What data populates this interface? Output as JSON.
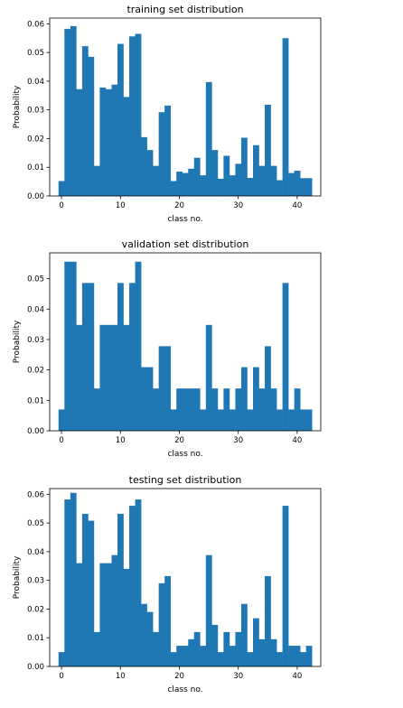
{
  "chart_data": [
    {
      "type": "bar",
      "title": "training set distribution",
      "xlabel": "class no.",
      "ylabel": "Probability",
      "xlim": [
        -2,
        44
      ],
      "ylim": [
        0,
        0.062
      ],
      "xticks": [
        0,
        10,
        20,
        30,
        40
      ],
      "yticks": [
        "0.00",
        "0.01",
        "0.02",
        "0.03",
        "0.04",
        "0.05",
        "0.06"
      ],
      "categories": [
        0,
        1,
        2,
        3,
        4,
        5,
        6,
        7,
        8,
        9,
        10,
        11,
        12,
        13,
        14,
        15,
        16,
        17,
        18,
        19,
        20,
        21,
        22,
        23,
        24,
        25,
        26,
        27,
        28,
        29,
        30,
        31,
        32,
        33,
        34,
        35,
        36,
        37,
        38,
        39,
        40,
        41,
        42
      ],
      "values": [
        0.0052,
        0.0582,
        0.0592,
        0.0372,
        0.0522,
        0.0485,
        0.0105,
        0.0378,
        0.0372,
        0.0388,
        0.053,
        0.0345,
        0.0556,
        0.0565,
        0.0205,
        0.016,
        0.0105,
        0.0292,
        0.0315,
        0.0052,
        0.0085,
        0.008,
        0.0095,
        0.0133,
        0.0072,
        0.0397,
        0.016,
        0.006,
        0.014,
        0.0072,
        0.0112,
        0.0203,
        0.0063,
        0.0177,
        0.0105,
        0.0318,
        0.0105,
        0.0055,
        0.055,
        0.008,
        0.0088,
        0.0062,
        0.0062
      ],
      "grid": false
    },
    {
      "type": "bar",
      "title": "validation set distribution",
      "xlabel": "class no.",
      "ylabel": "Probability",
      "xlim": [
        -2,
        44
      ],
      "ylim": [
        0,
        0.0585
      ],
      "xticks": [
        0,
        10,
        20,
        30,
        40
      ],
      "yticks": [
        "0.00",
        "0.01",
        "0.02",
        "0.03",
        "0.04",
        "0.05"
      ],
      "categories": [
        0,
        1,
        2,
        3,
        4,
        5,
        6,
        7,
        8,
        9,
        10,
        11,
        12,
        13,
        14,
        15,
        16,
        17,
        18,
        19,
        20,
        21,
        22,
        23,
        24,
        25,
        26,
        27,
        28,
        29,
        30,
        31,
        32,
        33,
        34,
        35,
        36,
        37,
        38,
        39,
        40,
        41,
        42
      ],
      "values": [
        0.007,
        0.0556,
        0.0556,
        0.0348,
        0.0486,
        0.0486,
        0.0139,
        0.0348,
        0.0348,
        0.0348,
        0.0486,
        0.0348,
        0.0486,
        0.0556,
        0.0209,
        0.0209,
        0.0139,
        0.0278,
        0.0278,
        0.007,
        0.0139,
        0.0139,
        0.0139,
        0.0139,
        0.007,
        0.0348,
        0.0139,
        0.007,
        0.0139,
        0.007,
        0.0139,
        0.0209,
        0.007,
        0.0209,
        0.0139,
        0.0278,
        0.0139,
        0.007,
        0.0486,
        0.007,
        0.0139,
        0.007,
        0.007
      ],
      "grid": false
    },
    {
      "type": "bar",
      "title": "testing set distribution",
      "xlabel": "class no.",
      "ylabel": "Probability",
      "xlim": [
        -2,
        44
      ],
      "ylim": [
        0,
        0.062
      ],
      "xticks": [
        0,
        10,
        20,
        30,
        40
      ],
      "yticks": [
        "0.00",
        "0.01",
        "0.02",
        "0.03",
        "0.04",
        "0.05",
        "0.06"
      ],
      "categories": [
        0,
        1,
        2,
        3,
        4,
        5,
        6,
        7,
        8,
        9,
        10,
        11,
        12,
        13,
        14,
        15,
        16,
        17,
        18,
        19,
        20,
        21,
        22,
        23,
        24,
        25,
        26,
        27,
        28,
        29,
        30,
        31,
        32,
        33,
        34,
        35,
        36,
        37,
        38,
        39,
        40,
        41,
        42
      ],
      "values": [
        0.005,
        0.0582,
        0.0605,
        0.036,
        0.0532,
        0.0508,
        0.012,
        0.036,
        0.036,
        0.0388,
        0.0532,
        0.034,
        0.056,
        0.0582,
        0.0218,
        0.019,
        0.012,
        0.029,
        0.0315,
        0.005,
        0.0072,
        0.0072,
        0.0095,
        0.012,
        0.0072,
        0.0388,
        0.0145,
        0.005,
        0.012,
        0.0072,
        0.012,
        0.0218,
        0.005,
        0.0168,
        0.0095,
        0.0315,
        0.0095,
        0.005,
        0.056,
        0.0072,
        0.0072,
        0.005,
        0.0072
      ],
      "grid": false
    }
  ],
  "style": {
    "bar_color": "#1f77b4"
  }
}
